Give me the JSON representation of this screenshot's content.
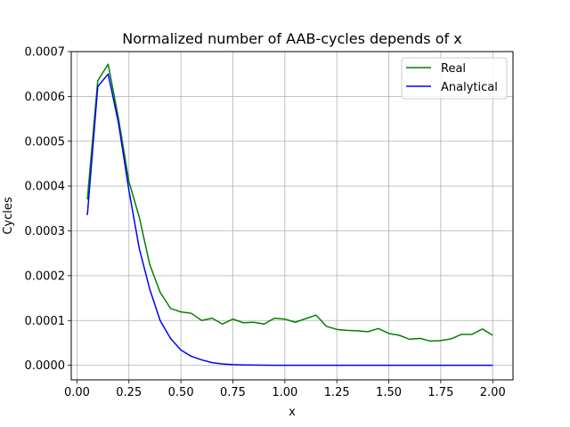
{
  "chart_data": {
    "type": "line",
    "title": "Normalized number of AAB-cycles depends of x",
    "xlabel": "x",
    "ylabel": "Cycles",
    "xlim": [
      -0.0275,
      2.0975
    ],
    "ylim": [
      -3.25e-05,
      0.0007
    ],
    "xticks": [
      0.0,
      0.25,
      0.5,
      0.75,
      1.0,
      1.25,
      1.5,
      1.75,
      2.0
    ],
    "xtick_labels": [
      "0.00",
      "0.25",
      "0.50",
      "0.75",
      "1.00",
      "1.25",
      "1.50",
      "1.75",
      "2.00"
    ],
    "yticks": [
      0.0,
      0.0001,
      0.0002,
      0.0003,
      0.0004,
      0.0005,
      0.0006,
      0.0007
    ],
    "ytick_labels": [
      "0.0000",
      "0.0001",
      "0.0002",
      "0.0003",
      "0.0004",
      "0.0005",
      "0.0006",
      "0.0007"
    ],
    "grid": true,
    "legend_position": "top-right",
    "x": [
      0.05,
      0.1,
      0.15,
      0.2,
      0.25,
      0.3,
      0.35,
      0.4,
      0.45,
      0.5,
      0.55,
      0.6,
      0.65,
      0.7,
      0.75,
      0.8,
      0.85,
      0.9,
      0.95,
      1.0,
      1.05,
      1.1,
      1.15,
      1.2,
      1.25,
      1.3,
      1.35,
      1.4,
      1.45,
      1.5,
      1.55,
      1.6,
      1.65,
      1.7,
      1.75,
      1.8,
      1.85,
      1.9,
      1.95,
      2.0
    ],
    "series": [
      {
        "name": "Real",
        "color": "#008000",
        "values": [
          0.00037,
          0.000635,
          0.000672,
          0.00055,
          0.00041,
          0.00033,
          0.000225,
          0.000163,
          0.000127,
          0.000119,
          0.000116,
          0.0001,
          0.000105,
          9.2e-05,
          0.000103,
          9.5e-05,
          9.6e-05,
          9.2e-05,
          0.000105,
          0.000103,
          9.6e-05,
          0.000104,
          0.000112,
          8.7e-05,
          8e-05,
          7.8e-05,
          7.7e-05,
          7.5e-05,
          8.2e-05,
          7.1e-05,
          6.7e-05,
          5.8e-05,
          6e-05,
          5.4e-05,
          5.5e-05,
          5.9e-05,
          6.9e-05,
          6.9e-05,
          8.1e-05,
          6.7e-05
        ]
      },
      {
        "name": "Analytical",
        "color": "#0000ff",
        "values": [
          0.000335,
          0.000622,
          0.00065,
          0.00054,
          0.00039,
          0.00026,
          0.00017,
          0.0001,
          6e-05,
          3.4e-05,
          2e-05,
          1.2e-05,
          6e-06,
          3e-06,
          1.5e-06,
          8e-07,
          4e-07,
          2e-07,
          1e-07,
          1e-07,
          0.0,
          0.0,
          0.0,
          0.0,
          0.0,
          0.0,
          0.0,
          0.0,
          0.0,
          0.0,
          0.0,
          0.0,
          0.0,
          0.0,
          0.0,
          0.0,
          0.0,
          0.0,
          0.0,
          0.0
        ]
      }
    ]
  }
}
